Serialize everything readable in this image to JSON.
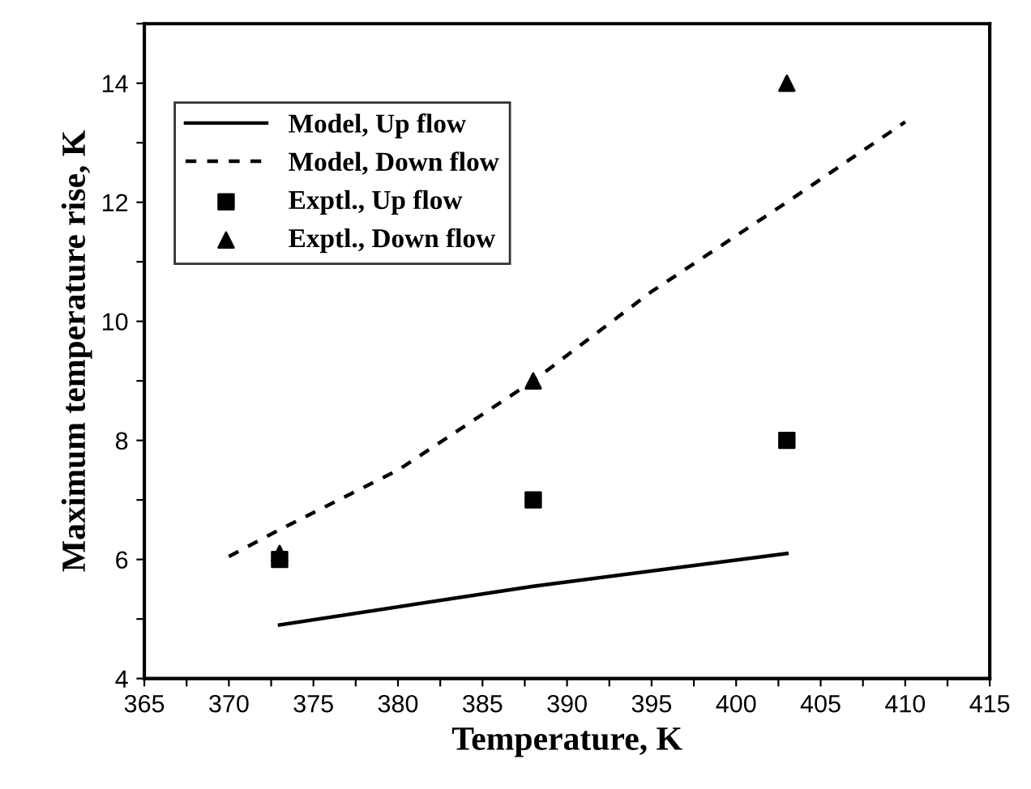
{
  "chart_data": {
    "type": "line",
    "xlabel": "Temperature, K",
    "ylabel": "Maximum temperature rise, K",
    "xlim": [
      365,
      415
    ],
    "ylim": [
      4,
      15
    ],
    "xticks": [
      365,
      {
        "value": 367.5,
        "label": null
      },
      370,
      {
        "value": 372.5,
        "label": null
      },
      375,
      {
        "value": 377.5,
        "label": null
      },
      380,
      {
        "value": 382.5,
        "label": null
      },
      385,
      {
        "value": 387.5,
        "label": null
      },
      390,
      {
        "value": 392.5,
        "label": null
      },
      395,
      {
        "value": 397.5,
        "label": null
      },
      400,
      {
        "value": 402.5,
        "label": null
      },
      405,
      {
        "value": 407.5,
        "label": null
      },
      410,
      {
        "value": 412.5,
        "label": null
      },
      415
    ],
    "yticks": [
      4,
      {
        "value": 5,
        "label": null
      },
      6,
      {
        "value": 7,
        "label": null
      },
      8,
      {
        "value": 9,
        "label": null
      },
      10,
      {
        "value": 11,
        "label": null
      },
      12,
      {
        "value": 13,
        "label": null
      },
      14,
      {
        "value": 15,
        "label": null
      }
    ],
    "grid": false,
    "legend": "top left",
    "series": [
      {
        "name": "Model, Up flow",
        "color": "#000000",
        "line_style": "solid",
        "marker": "none",
        "x": [
          373,
          388,
          403
        ],
        "values": [
          4.9,
          5.55,
          6.1
        ]
      },
      {
        "name": "Model, Down flow",
        "color": "#000000",
        "line_style": "dashed",
        "marker": "none",
        "x": [
          370,
          373,
          380,
          388,
          395,
          403,
          410
        ],
        "values": [
          6.05,
          6.5,
          7.5,
          9.0,
          10.5,
          12.0,
          13.35
        ]
      },
      {
        "name": "Exptl., Up flow",
        "type": "scatter",
        "color": "#000000",
        "marker": "square",
        "x": [
          373,
          388,
          403
        ],
        "values": [
          6,
          7,
          8
        ]
      },
      {
        "name": "Exptl., Down flow",
        "type": "scatter",
        "color": "#000000",
        "marker": "triangle",
        "x": [
          373,
          388,
          403
        ],
        "values": [
          6.1,
          9,
          14
        ]
      }
    ]
  }
}
